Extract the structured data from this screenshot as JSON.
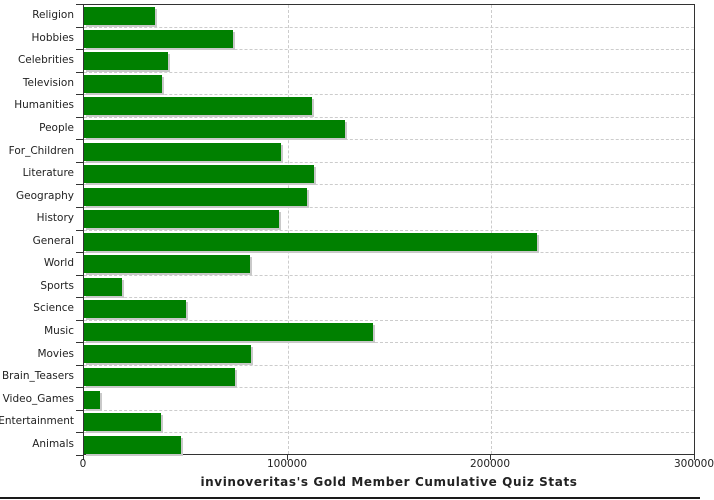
{
  "chart_data": {
    "type": "bar",
    "orientation": "horizontal",
    "title": "invinoveritas's Gold Member Cumulative Quiz Stats",
    "categories": [
      "Religion",
      "Hobbies",
      "Celebrities",
      "Television",
      "Humanities",
      "People",
      "For_Children",
      "Literature",
      "Geography",
      "History",
      "General",
      "World",
      "Sports",
      "Science",
      "Music",
      "Movies",
      "Brain_Teasers",
      "Video_Games",
      "Entertainment",
      "Animals"
    ],
    "values": [
      35000,
      73000,
      41000,
      38500,
      112000,
      128000,
      96500,
      113000,
      109500,
      95500,
      222500,
      81500,
      18500,
      50000,
      142000,
      82000,
      74000,
      7700,
      38000,
      47500
    ],
    "xlabel": "",
    "ylabel": "",
    "xlim": [
      0,
      300000
    ],
    "x_ticks": [
      0,
      100000,
      200000,
      300000
    ],
    "x_tick_labels": [
      "0",
      "100000",
      "200000",
      "300000"
    ],
    "grid": "dashed",
    "legend": "none",
    "colors": {
      "bar": "#008000",
      "bar_shadow": "#c9c9c9",
      "grid": "#cccccc",
      "axis": "#333333",
      "text": "#222222",
      "background": "#ffffff"
    }
  }
}
